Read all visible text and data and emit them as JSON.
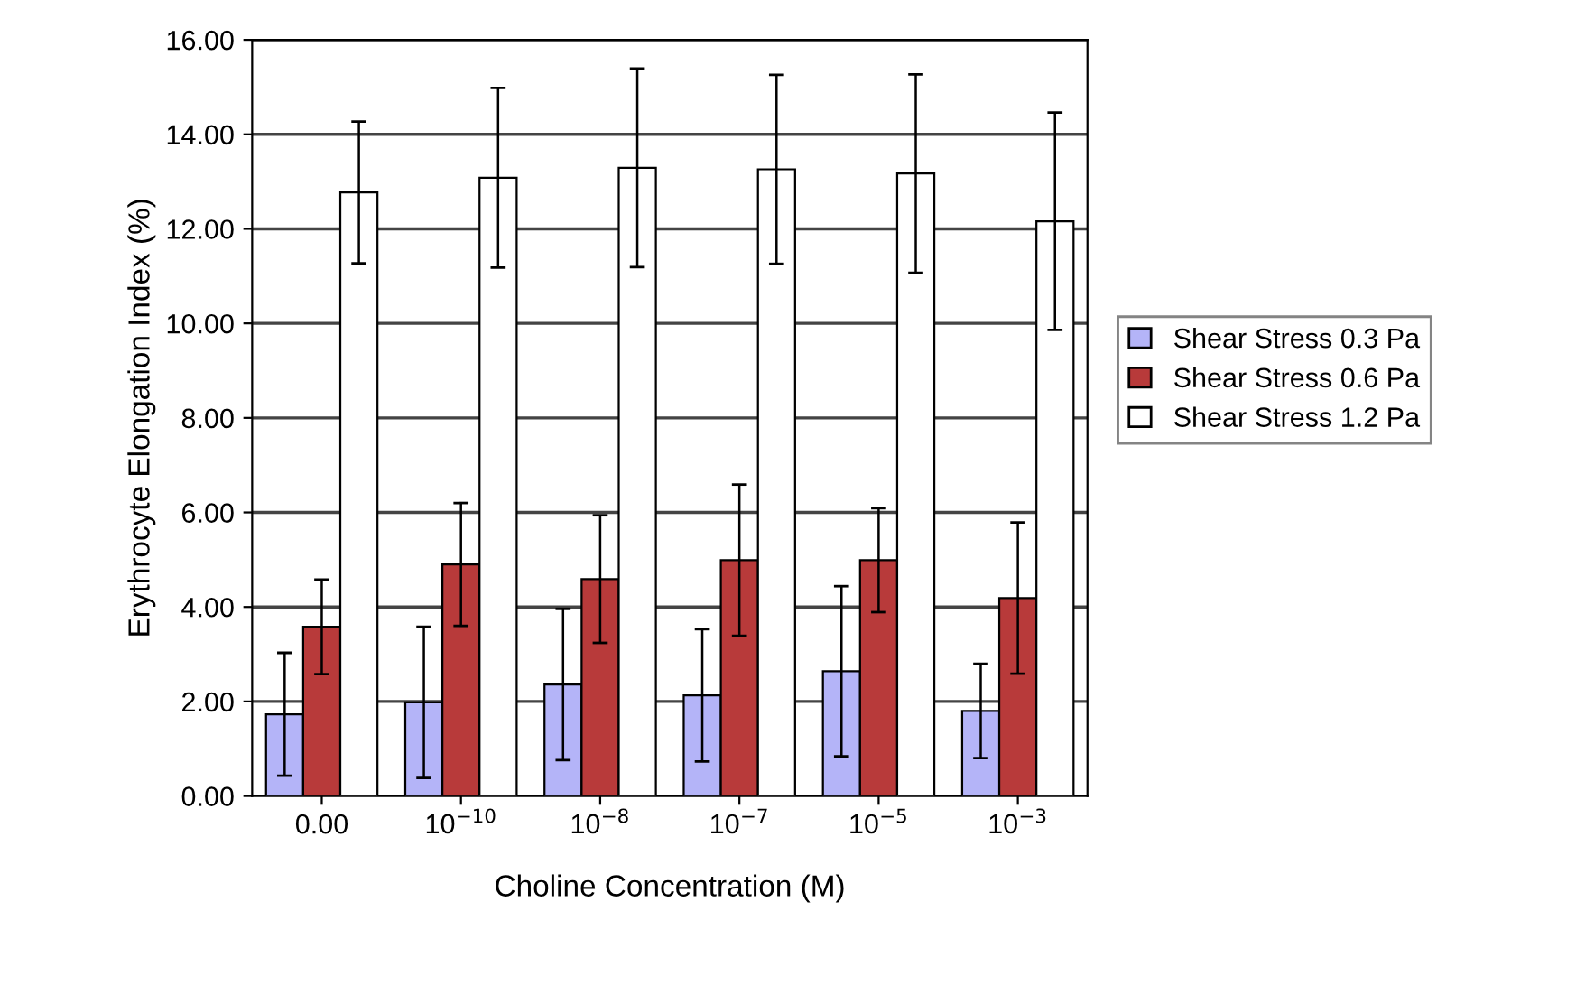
{
  "chart_data": {
    "type": "bar",
    "xlabel": "Choline Concentration (M)",
    "ylabel": "Erythrocyte Elongation Index (%)",
    "categories": [
      "0.00",
      "10$^{−10}$",
      "10$^{−8}$",
      "10$^{−7}$",
      "10$^{−5}$",
      "10$^{−3}$"
    ],
    "series": [
      {
        "name": "Shear Stress 0.3 Pa",
        "color": "#b4b4f8",
        "values": [
          1.73,
          1.98,
          2.36,
          2.13,
          2.64,
          1.8
        ],
        "errors": [
          1.3,
          1.6,
          1.6,
          1.4,
          1.8,
          1.0
        ]
      },
      {
        "name": "Shear Stress 0.6 Pa",
        "color": "#b83a3a",
        "values": [
          3.58,
          4.9,
          4.59,
          4.99,
          4.99,
          4.19
        ],
        "errors": [
          1.0,
          1.3,
          1.35,
          1.6,
          1.1,
          1.6
        ]
      },
      {
        "name": "Shear Stress 1.2 Pa",
        "color": "#ffffff",
        "values": [
          12.77,
          13.08,
          13.29,
          13.26,
          13.17,
          12.16
        ],
        "errors": [
          1.5,
          1.9,
          2.1,
          2.0,
          2.1,
          2.3
        ]
      }
    ],
    "ylim": [
      0,
      16
    ],
    "yticks": [
      {
        "value": 0,
        "label": "0.00"
      },
      {
        "value": 2,
        "label": "2.00"
      },
      {
        "value": 4,
        "label": "4.00"
      },
      {
        "value": 6,
        "label": "6.00"
      },
      {
        "value": 8,
        "label": "8.00"
      },
      {
        "value": 10,
        "label": "10.00"
      },
      {
        "value": 12,
        "label": "12.00"
      },
      {
        "value": 14,
        "label": "14.00"
      },
      {
        "value": 16,
        "label": "16.00"
      }
    ],
    "grid": "y",
    "legend": "right"
  }
}
